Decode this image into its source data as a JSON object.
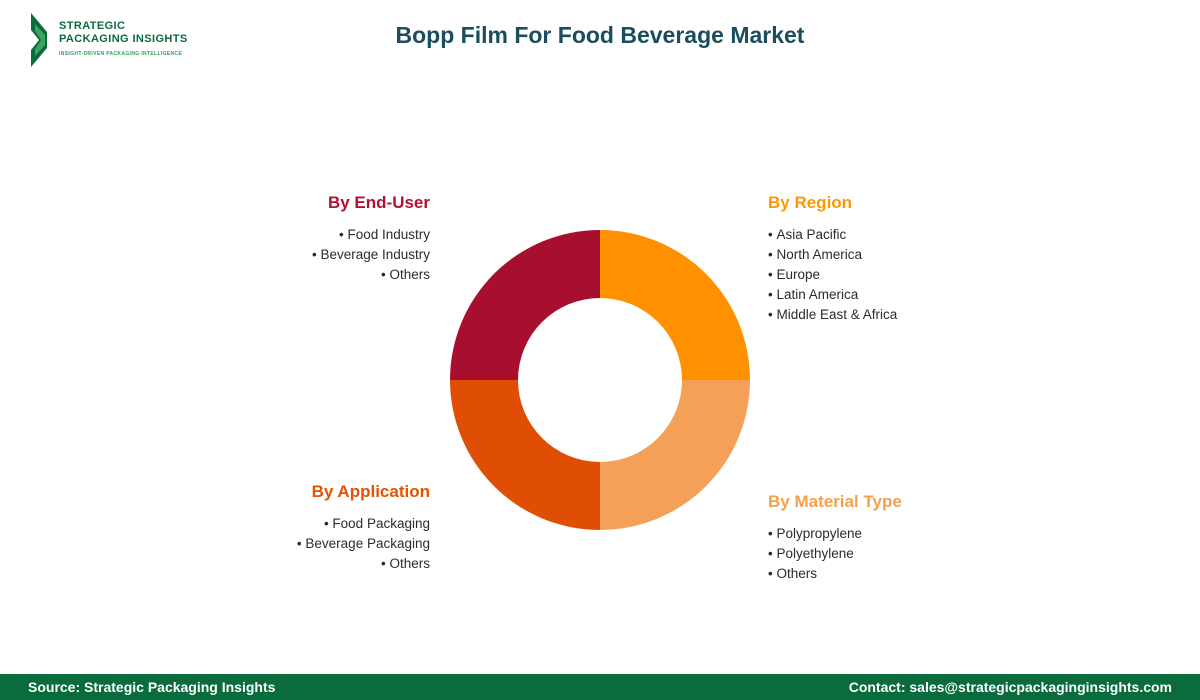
{
  "header": {
    "title": "Bopp Film For Food Beverage Market",
    "logo": {
      "line1": "STRATEGIC",
      "line2": "PACKAGING INSIGHTS",
      "tagline": "INSIGHT-DRIVEN PACKAGING INTELLIGENCE"
    }
  },
  "chart_data": {
    "type": "pie",
    "donut": true,
    "title": "Bopp Film For Food Beverage Market",
    "categories": [
      "By Region",
      "By Material Type",
      "By Application",
      "By End-User"
    ],
    "values": [
      25,
      25,
      25,
      25
    ],
    "colors": [
      "#FF9100",
      "#F5A058",
      "#E04E06",
      "#A80F2F"
    ],
    "start_angle_deg": 0,
    "legend_position": "around"
  },
  "segments": {
    "end_user": {
      "heading": "By End-User",
      "color": "#B01233",
      "items": [
        "Food Industry",
        "Beverage Industry",
        "Others"
      ]
    },
    "region": {
      "heading": "By Region",
      "color": "#FF9800",
      "items": [
        "Asia Pacific",
        "North America",
        "Europe",
        "Latin America",
        "Middle East & Africa"
      ]
    },
    "application": {
      "heading": "By Application",
      "color": "#E25303",
      "items": [
        "Food Packaging",
        "Beverage Packaging",
        "Others"
      ]
    },
    "material_type": {
      "heading": "By Material Type",
      "color": "#F5A14B",
      "items": [
        "Polypropylene",
        "Polyethylene",
        "Others"
      ]
    }
  },
  "footer": {
    "source": "Source: Strategic Packaging Insights",
    "contact": "Contact: sales@strategicpackaginginsights.com"
  }
}
